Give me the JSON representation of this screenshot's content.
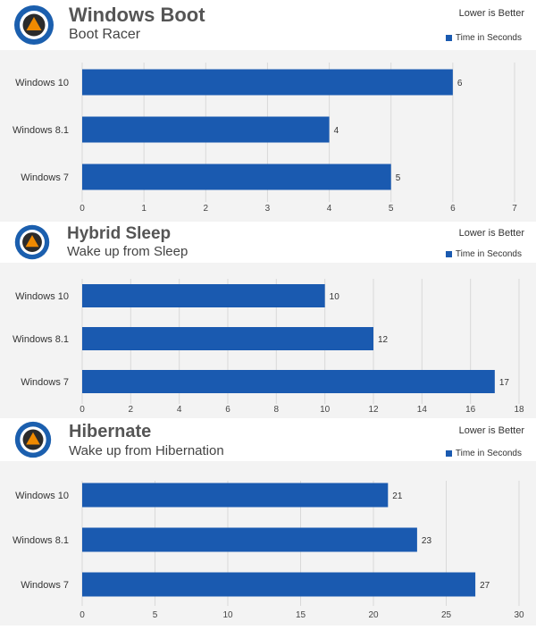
{
  "colors": {
    "bar": "#1a5ab0",
    "plot_background": "#f3f3f3",
    "grid": "#d9d9d9",
    "logo_ring": "#1b5fae",
    "logo_triangle": "#f08a00"
  },
  "icons": {
    "logo": "blue-circle-orange-triangle-logo-icon"
  },
  "panels": [
    {
      "title": "Windows Boot",
      "subtitle": "Boot Racer",
      "note": "Lower is Better",
      "legend": "Time in Seconds"
    },
    {
      "title": "Hybrid Sleep",
      "subtitle": "Wake up from Sleep",
      "note": "Lower is Better",
      "legend": "Time in Seconds"
    },
    {
      "title": "Hibernate",
      "subtitle": "Wake up from Hibernation",
      "note": "Lower is Better",
      "legend": "Time in Seconds"
    }
  ],
  "chart_data": [
    {
      "type": "bar",
      "orientation": "horizontal",
      "title": "Windows Boot",
      "subtitle": "Boot Racer",
      "categories": [
        "Windows 10",
        "Windows 8.1",
        "Windows 7"
      ],
      "series": [
        {
          "name": "Time in Seconds",
          "values": [
            6,
            4,
            5
          ]
        }
      ],
      "xlim": [
        0,
        7
      ],
      "ticks": [
        0,
        1,
        2,
        3,
        4,
        5,
        6,
        7
      ],
      "grid": true,
      "legend_position": "top-right"
    },
    {
      "type": "bar",
      "orientation": "horizontal",
      "title": "Hybrid Sleep",
      "subtitle": "Wake up from Sleep",
      "categories": [
        "Windows 10",
        "Windows 8.1",
        "Windows 7"
      ],
      "series": [
        {
          "name": "Time in Seconds",
          "values": [
            10,
            12,
            17
          ]
        }
      ],
      "xlim": [
        0,
        18
      ],
      "ticks": [
        0,
        2,
        4,
        6,
        8,
        10,
        12,
        14,
        16,
        18
      ],
      "grid": true,
      "legend_position": "top-right"
    },
    {
      "type": "bar",
      "orientation": "horizontal",
      "title": "Hibernate",
      "subtitle": "Wake up from Hibernation",
      "categories": [
        "Windows 10",
        "Windows 8.1",
        "Windows 7"
      ],
      "series": [
        {
          "name": "Time in Seconds",
          "values": [
            21,
            23,
            27
          ]
        }
      ],
      "xlim": [
        0,
        30
      ],
      "ticks": [
        0,
        5,
        10,
        15,
        20,
        25,
        30
      ],
      "grid": true,
      "legend_position": "top-right"
    }
  ]
}
